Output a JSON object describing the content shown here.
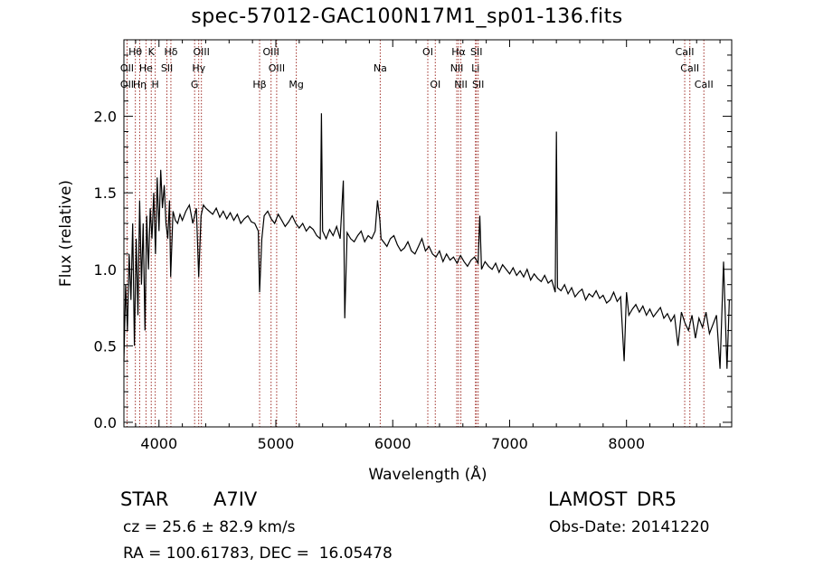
{
  "chart_data": {
    "type": "line",
    "title": "spec-57012-GAC100N17M1_sp01-136.fits",
    "xlabel": "Wavelength (Å)",
    "ylabel": "Flux (relative)",
    "xlim": [
      3700,
      8900
    ],
    "ylim": [
      -0.03,
      2.5
    ],
    "x_ticks": [
      4000,
      5000,
      6000,
      7000,
      8000
    ],
    "y_ticks": [
      0.0,
      0.5,
      1.0,
      1.5,
      2.0
    ],
    "x_tick_labels": [
      "4000",
      "5000",
      "6000",
      "7000",
      "8000"
    ],
    "y_tick_labels": [
      "0.0",
      "0.5",
      "1.0",
      "1.5",
      "2.0"
    ],
    "line_color": "#000000",
    "marker_color": "#a0302a",
    "series": [
      {
        "x": [
          3700,
          3715,
          3730,
          3745,
          3760,
          3775,
          3790,
          3805,
          3820,
          3835,
          3850,
          3865,
          3880,
          3895,
          3910,
          3925,
          3940,
          3955,
          3970,
          3985,
          4000,
          4015,
          4030,
          4045,
          4060,
          4075,
          4090,
          4100,
          4120,
          4140,
          4160,
          4180,
          4200,
          4230,
          4260,
          4290,
          4320,
          4340,
          4360,
          4380,
          4400,
          4430,
          4460,
          4490,
          4520,
          4550,
          4580,
          4610,
          4640,
          4670,
          4700,
          4730,
          4760,
          4790,
          4820,
          4850,
          4861,
          4880,
          4900,
          4930,
          4960,
          4990,
          5020,
          5050,
          5080,
          5110,
          5140,
          5170,
          5200,
          5230,
          5260,
          5290,
          5320,
          5350,
          5380,
          5390,
          5400,
          5430,
          5460,
          5490,
          5520,
          5550,
          5577,
          5590,
          5610,
          5640,
          5670,
          5700,
          5730,
          5760,
          5790,
          5820,
          5850,
          5870,
          5890,
          5900,
          5920,
          5950,
          5980,
          6010,
          6040,
          6070,
          6100,
          6130,
          6160,
          6190,
          6220,
          6250,
          6280,
          6310,
          6340,
          6370,
          6400,
          6430,
          6460,
          6490,
          6520,
          6550,
          6580,
          6610,
          6640,
          6670,
          6700,
          6730,
          6745,
          6760,
          6790,
          6820,
          6850,
          6880,
          6910,
          6940,
          6970,
          7000,
          7030,
          7060,
          7090,
          7120,
          7150,
          7180,
          7210,
          7240,
          7270,
          7300,
          7330,
          7360,
          7390,
          7400,
          7410,
          7440,
          7470,
          7500,
          7530,
          7560,
          7590,
          7620,
          7650,
          7680,
          7710,
          7740,
          7770,
          7800,
          7830,
          7860,
          7890,
          7920,
          7950,
          7980,
          8000,
          8020,
          8050,
          8080,
          8110,
          8140,
          8170,
          8200,
          8230,
          8260,
          8290,
          8320,
          8350,
          8380,
          8410,
          8440,
          8470,
          8500,
          8530,
          8560,
          8590,
          8620,
          8650,
          8680,
          8710,
          8740,
          8770,
          8800,
          8830,
          8860,
          8880
        ],
        "y": [
          0.4,
          0.9,
          0.6,
          1.1,
          0.8,
          1.3,
          0.5,
          1.2,
          0.7,
          1.45,
          0.9,
          1.3,
          0.6,
          1.35,
          1.0,
          1.4,
          1.2,
          1.5,
          1.1,
          1.6,
          1.25,
          1.65,
          1.4,
          1.55,
          1.3,
          1.2,
          1.45,
          0.95,
          1.38,
          1.32,
          1.3,
          1.36,
          1.32,
          1.38,
          1.42,
          1.3,
          1.4,
          0.95,
          1.35,
          1.42,
          1.4,
          1.38,
          1.36,
          1.4,
          1.34,
          1.38,
          1.33,
          1.37,
          1.32,
          1.36,
          1.3,
          1.33,
          1.35,
          1.31,
          1.3,
          1.25,
          0.85,
          1.2,
          1.35,
          1.38,
          1.33,
          1.3,
          1.36,
          1.32,
          1.28,
          1.31,
          1.35,
          1.3,
          1.27,
          1.3,
          1.25,
          1.28,
          1.26,
          1.22,
          1.2,
          2.02,
          1.25,
          1.2,
          1.26,
          1.22,
          1.28,
          1.2,
          1.58,
          0.68,
          1.24,
          1.2,
          1.18,
          1.22,
          1.25,
          1.18,
          1.22,
          1.2,
          1.25,
          1.45,
          1.32,
          1.2,
          1.18,
          1.15,
          1.2,
          1.22,
          1.16,
          1.12,
          1.14,
          1.18,
          1.12,
          1.1,
          1.15,
          1.2,
          1.12,
          1.15,
          1.1,
          1.08,
          1.12,
          1.05,
          1.1,
          1.06,
          1.08,
          1.04,
          1.09,
          1.05,
          1.02,
          1.06,
          1.08,
          1.04,
          1.35,
          1.0,
          1.05,
          1.02,
          1.0,
          1.04,
          0.98,
          1.03,
          1.0,
          0.97,
          1.01,
          0.96,
          0.99,
          0.95,
          1.0,
          0.93,
          0.97,
          0.94,
          0.92,
          0.96,
          0.91,
          0.93,
          0.85,
          1.9,
          0.88,
          0.86,
          0.9,
          0.84,
          0.88,
          0.82,
          0.85,
          0.87,
          0.8,
          0.84,
          0.82,
          0.86,
          0.81,
          0.83,
          0.78,
          0.8,
          0.85,
          0.79,
          0.82,
          0.4,
          0.85,
          0.7,
          0.74,
          0.77,
          0.72,
          0.76,
          0.7,
          0.74,
          0.69,
          0.72,
          0.75,
          0.68,
          0.71,
          0.66,
          0.7,
          0.5,
          0.72,
          0.65,
          0.6,
          0.7,
          0.55,
          0.68,
          0.62,
          0.72,
          0.58,
          0.64,
          0.7,
          0.35,
          1.05,
          0.35,
          0.8
        ]
      }
    ],
    "lines": [
      {
        "label": "Hθ",
        "x": 3798,
        "row": 1
      },
      {
        "label": "OII",
        "x": 3727,
        "row": 2
      },
      {
        "label": "OII",
        "x": 3727,
        "row": 3
      },
      {
        "label": "Hη",
        "x": 3835,
        "row": 3
      },
      {
        "label": "He",
        "x": 3889,
        "row": 2
      },
      {
        "label": "K",
        "x": 3934,
        "row": 1
      },
      {
        "label": "H",
        "x": 3968,
        "row": 3
      },
      {
        "label": "Hδ",
        "x": 4102,
        "row": 1
      },
      {
        "label": "SII",
        "x": 4068,
        "row": 2
      },
      {
        "label": "OIII",
        "x": 4363,
        "row": 1
      },
      {
        "label": "Hγ",
        "x": 4340,
        "row": 2
      },
      {
        "label": "G",
        "x": 4305,
        "row": 3
      },
      {
        "label": "OIII",
        "x": 4959,
        "row": 1
      },
      {
        "label": "OIII",
        "x": 5007,
        "row": 2
      },
      {
        "label": "Hβ",
        "x": 4861,
        "row": 3
      },
      {
        "label": "Mg",
        "x": 5175,
        "row": 3
      },
      {
        "label": "Na",
        "x": 5893,
        "row": 2
      },
      {
        "label": "OI",
        "x": 6300,
        "row": 1
      },
      {
        "label": "OI",
        "x": 6364,
        "row": 3
      },
      {
        "label": "Hα",
        "x": 6563,
        "row": 1
      },
      {
        "label": "NII",
        "x": 6548,
        "row": 2
      },
      {
        "label": "NII",
        "x": 6583,
        "row": 3
      },
      {
        "label": "SII",
        "x": 6716,
        "row": 1
      },
      {
        "label": "Li",
        "x": 6708,
        "row": 2
      },
      {
        "label": "SII",
        "x": 6731,
        "row": 3
      },
      {
        "label": "CaII",
        "x": 8498,
        "row": 1
      },
      {
        "label": "CaII",
        "x": 8542,
        "row": 2
      },
      {
        "label": "CaII",
        "x": 8662,
        "row": 3
      }
    ]
  },
  "info": {
    "object_type": "STAR",
    "subclass": "A7IV",
    "survey": "LAMOST DR5",
    "redshift": "cz = 25.6 ± 82.9 km/s",
    "obs_date": "Obs-Date: 20141220",
    "coords": "RA = 100.61783, DEC =  16.05478"
  }
}
